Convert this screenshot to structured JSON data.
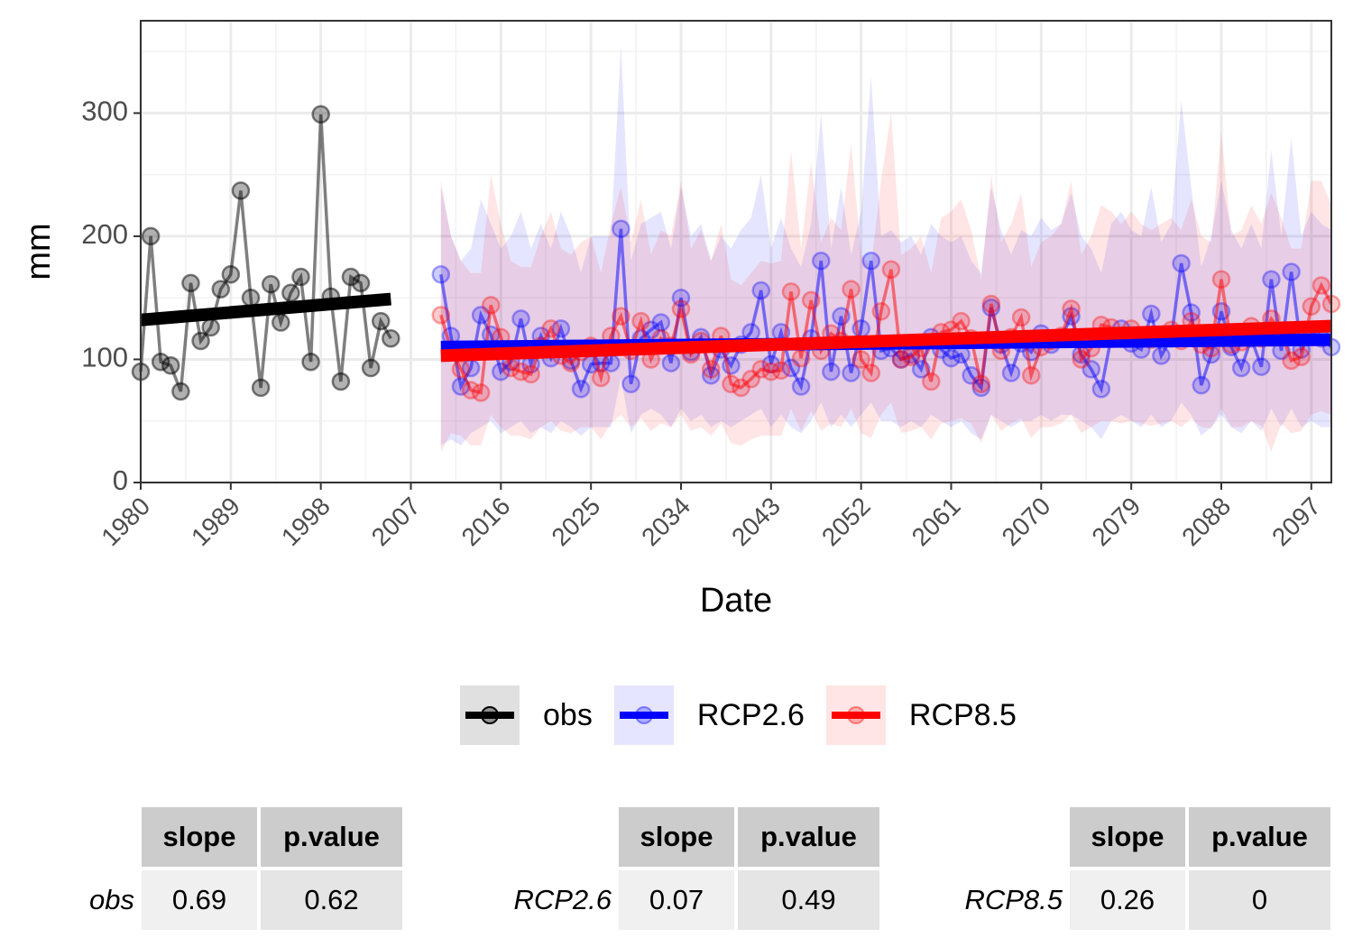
{
  "colors": {
    "obs": "#000000",
    "rcp26": "#0000ff",
    "rcp85": "#ff0000"
  },
  "chart_data": {
    "type": "line",
    "xlabel": "Date",
    "ylabel": "mm",
    "xlim": [
      1980,
      2099
    ],
    "ylim": [
      0,
      375
    ],
    "grid": true,
    "x_ticks": [
      "1980",
      "1989",
      "1998",
      "2007",
      "2016",
      "2025",
      "2034",
      "2043",
      "2052",
      "2061",
      "2070",
      "2079",
      "2088",
      "2097"
    ],
    "y_ticks": [
      "0",
      "100",
      "200",
      "300"
    ],
    "legend_position": "bottom",
    "series": [
      {
        "name": "obs",
        "x": [
          1980,
          1981,
          1982,
          1983,
          1984,
          1985,
          1986,
          1987,
          1988,
          1989,
          1990,
          1991,
          1992,
          1993,
          1994,
          1995,
          1996,
          1997,
          1998,
          1999,
          2000,
          2001,
          2002,
          2003,
          2004,
          2005
        ],
        "values": [
          90,
          200,
          98,
          95,
          74,
          162,
          115,
          126,
          157,
          169,
          237,
          150,
          77,
          161,
          130,
          154,
          167,
          98,
          299,
          151,
          82,
          167,
          162,
          93,
          131,
          117
        ],
        "trend": [
          132,
          149
        ]
      },
      {
        "name": "RCP2.6",
        "x": [
          2010,
          2011,
          2012,
          2013,
          2014,
          2015,
          2016,
          2017,
          2018,
          2019,
          2020,
          2021,
          2022,
          2023,
          2024,
          2025,
          2026,
          2027,
          2028,
          2029,
          2030,
          2031,
          2032,
          2033,
          2034,
          2035,
          2036,
          2037,
          2038,
          2039,
          2040,
          2041,
          2042,
          2043,
          2044,
          2045,
          2046,
          2047,
          2048,
          2049,
          2050,
          2051,
          2052,
          2053,
          2054,
          2055,
          2056,
          2057,
          2058,
          2059,
          2060,
          2061,
          2062,
          2063,
          2064,
          2065,
          2066,
          2067,
          2068,
          2069,
          2070,
          2071,
          2072,
          2073,
          2074,
          2075,
          2076,
          2077,
          2078,
          2079,
          2080,
          2081,
          2082,
          2083,
          2084,
          2085,
          2086,
          2087,
          2088,
          2089,
          2090,
          2091,
          2092,
          2093,
          2094,
          2095,
          2096,
          2097,
          2098,
          2099
        ],
        "values": [
          169,
          119,
          78,
          93,
          136,
          120,
          90,
          98,
          133,
          96,
          119,
          101,
          125,
          99,
          76,
          96,
          97,
          97,
          206,
          80,
          117,
          124,
          130,
          97,
          150,
          106,
          118,
          87,
          108,
          95,
          112,
          122,
          156,
          96,
          122,
          93,
          78,
          117,
          180,
          90,
          135,
          89,
          125,
          180,
          107,
          109,
          100,
          104,
          92,
          118,
          108,
          101,
          104,
          87,
          77,
          142,
          112,
          89,
          113,
          106,
          121,
          112,
          117,
          135,
          104,
          92,
          76,
          118,
          125,
          113,
          108,
          137,
          103,
          117,
          178,
          138,
          79,
          104,
          139,
          110,
          93,
          117,
          94,
          165,
          107,
          171,
          108,
          121,
          117,
          110
        ],
        "trend": [
          110,
          116
        ],
        "band_low": [
          30,
          35,
          30,
          40,
          45,
          50,
          40,
          45,
          50,
          40,
          45,
          40,
          50,
          45,
          38,
          45,
          45,
          45,
          85,
          40,
          55,
          60,
          55,
          45,
          60,
          50,
          55,
          45,
          50,
          45,
          50,
          55,
          60,
          45,
          55,
          45,
          40,
          50,
          65,
          45,
          55,
          45,
          55,
          65,
          50,
          50,
          45,
          50,
          45,
          55,
          50,
          45,
          50,
          40,
          35,
          55,
          50,
          45,
          50,
          50,
          55,
          50,
          55,
          55,
          50,
          45,
          35,
          50,
          55,
          50,
          45,
          55,
          45,
          50,
          65,
          55,
          38,
          45,
          55,
          45,
          40,
          50,
          42,
          60,
          45,
          60,
          45,
          50,
          45,
          45
        ],
        "band_high": [
          240,
          200,
          180,
          190,
          230,
          210,
          190,
          200,
          220,
          190,
          210,
          190,
          220,
          200,
          170,
          200,
          200,
          200,
          355,
          180,
          210,
          215,
          220,
          190,
          240,
          200,
          210,
          180,
          200,
          190,
          205,
          215,
          250,
          190,
          215,
          190,
          175,
          210,
          300,
          190,
          240,
          185,
          220,
          330,
          200,
          205,
          195,
          200,
          185,
          210,
          200,
          195,
          200,
          180,
          170,
          240,
          205,
          185,
          205,
          200,
          215,
          205,
          210,
          235,
          200,
          190,
          170,
          210,
          220,
          205,
          200,
          240,
          195,
          210,
          310,
          240,
          175,
          200,
          245,
          205,
          190,
          210,
          190,
          270,
          200,
          280,
          200,
          220,
          210,
          205
        ]
      },
      {
        "name": "RCP8.5",
        "x": [
          2010,
          2011,
          2012,
          2013,
          2014,
          2015,
          2016,
          2017,
          2018,
          2019,
          2020,
          2021,
          2022,
          2023,
          2024,
          2025,
          2026,
          2027,
          2028,
          2029,
          2030,
          2031,
          2032,
          2033,
          2034,
          2035,
          2036,
          2037,
          2038,
          2039,
          2040,
          2041,
          2042,
          2043,
          2044,
          2045,
          2046,
          2047,
          2048,
          2049,
          2050,
          2051,
          2052,
          2053,
          2054,
          2055,
          2056,
          2057,
          2058,
          2059,
          2060,
          2061,
          2062,
          2063,
          2064,
          2065,
          2066,
          2067,
          2068,
          2069,
          2070,
          2071,
          2072,
          2073,
          2074,
          2075,
          2076,
          2077,
          2078,
          2079,
          2080,
          2081,
          2082,
          2083,
          2084,
          2085,
          2086,
          2087,
          2088,
          2089,
          2090,
          2091,
          2092,
          2093,
          2094,
          2095,
          2096,
          2097,
          2098,
          2099
        ],
        "values": [
          136,
          108,
          92,
          75,
          73,
          144,
          118,
          93,
          90,
          88,
          111,
          125,
          103,
          97,
          106,
          111,
          85,
          119,
          135,
          107,
          131,
          100,
          117,
          111,
          141,
          104,
          115,
          92,
          119,
          80,
          77,
          84,
          92,
          90,
          91,
          155,
          101,
          148,
          107,
          121,
          115,
          157,
          100,
          89,
          139,
          173,
          100,
          102,
          109,
          82,
          122,
          124,
          131,
          117,
          80,
          145,
          107,
          118,
          134,
          87,
          110,
          115,
          119,
          141,
          100,
          109,
          128,
          126,
          118,
          125,
          119,
          116,
          120,
          124,
          115,
          131,
          112,
          109,
          165,
          112,
          114,
          127,
          117,
          133,
          122,
          99,
          102,
          143,
          160,
          145
        ],
        "trend": [
          103,
          127
        ],
        "band_low": [
          25,
          40,
          38,
          30,
          30,
          55,
          45,
          38,
          38,
          35,
          45,
          50,
          42,
          40,
          45,
          45,
          35,
          48,
          55,
          45,
          52,
          42,
          48,
          45,
          55,
          42,
          45,
          38,
          48,
          32,
          30,
          35,
          38,
          38,
          38,
          60,
          42,
          58,
          42,
          48,
          45,
          60,
          40,
          36,
          55,
          65,
          40,
          42,
          45,
          35,
          48,
          50,
          52,
          48,
          32,
          55,
          42,
          48,
          52,
          36,
          45,
          45,
          48,
          55,
          40,
          45,
          50,
          50,
          48,
          50,
          48,
          46,
          48,
          50,
          45,
          52,
          45,
          44,
          60,
          45,
          45,
          50,
          46,
          25,
          48,
          40,
          42,
          55,
          58,
          55
        ],
        "band_high": [
          245,
          200,
          180,
          170,
          170,
          250,
          210,
          180,
          175,
          175,
          200,
          220,
          190,
          185,
          195,
          200,
          170,
          210,
          240,
          195,
          230,
          185,
          205,
          200,
          245,
          190,
          205,
          180,
          210,
          165,
          160,
          170,
          180,
          178,
          180,
          270,
          190,
          260,
          195,
          215,
          205,
          275,
          185,
          175,
          245,
          300,
          185,
          190,
          200,
          170,
          215,
          220,
          230,
          205,
          165,
          250,
          195,
          210,
          235,
          175,
          195,
          200,
          210,
          245,
          185,
          200,
          225,
          220,
          210,
          220,
          210,
          205,
          210,
          215,
          205,
          230,
          200,
          195,
          285,
          200,
          205,
          225,
          210,
          235,
          215,
          190,
          190,
          245,
          245,
          225
        ]
      }
    ]
  },
  "tables": [
    {
      "row_name": "obs",
      "headers": [
        "slope",
        "p.value"
      ],
      "values": [
        "0.69",
        "0.62"
      ]
    },
    {
      "row_name": "RCP2.6",
      "headers": [
        "slope",
        "p.value"
      ],
      "values": [
        "0.07",
        "0.49"
      ]
    },
    {
      "row_name": "RCP8.5",
      "headers": [
        "slope",
        "p.value"
      ],
      "values": [
        "0.26",
        "0"
      ]
    }
  ]
}
